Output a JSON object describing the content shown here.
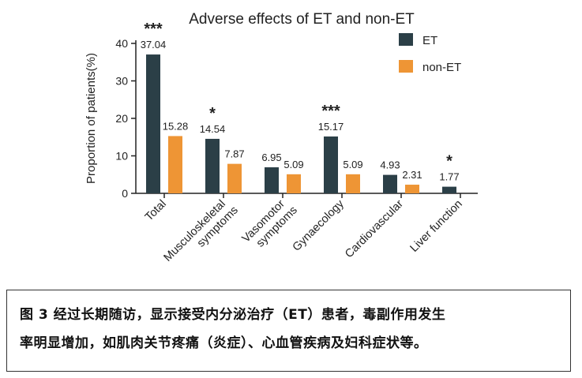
{
  "chart_data": {
    "type": "bar",
    "title": "Adverse effects of ET and non-ET",
    "ylabel": "Proportion of patients(%)",
    "xlabel": "",
    "ylim": [
      0,
      40
    ],
    "yticks": [
      0,
      10,
      20,
      30,
      40
    ],
    "categories": [
      "Total",
      "Musculoskeletal symptoms",
      "Vasomotor symptoms",
      "Gynaecology",
      "Cardiovascular",
      "Liver function"
    ],
    "category_lines": [
      [
        "Total"
      ],
      [
        "Musculoskeletal",
        "symptoms"
      ],
      [
        "Vasomotor",
        "symptoms"
      ],
      [
        "Gynaecology"
      ],
      [
        "Cardiovascular"
      ],
      [
        "Liver function"
      ]
    ],
    "series": [
      {
        "name": "ET",
        "color": "#2b3f47",
        "values": [
          37.04,
          14.54,
          6.95,
          15.17,
          4.93,
          1.77
        ],
        "labels": [
          "37.04",
          "14.54",
          "6.95",
          "15.17",
          "4.93",
          "1.77"
        ]
      },
      {
        "name": "non-ET",
        "color": "#ee9535",
        "values": [
          15.28,
          7.87,
          5.09,
          5.09,
          2.31,
          null
        ],
        "labels": [
          "15.28",
          "7.87",
          "5.09",
          "5.09",
          "2.31",
          ""
        ]
      }
    ],
    "significance": [
      "***",
      "*",
      "",
      "***",
      "",
      "*"
    ],
    "legend": "top-right",
    "grid": false
  },
  "caption": {
    "figure_label": "图 3",
    "line1": "经过长期随访，显示接受内分泌治疗（ET）患者，毒副作用发生",
    "line2": "率明显增加，如肌肉关节疼痛（炎症）、心血管疾病及妇科症状等。"
  }
}
